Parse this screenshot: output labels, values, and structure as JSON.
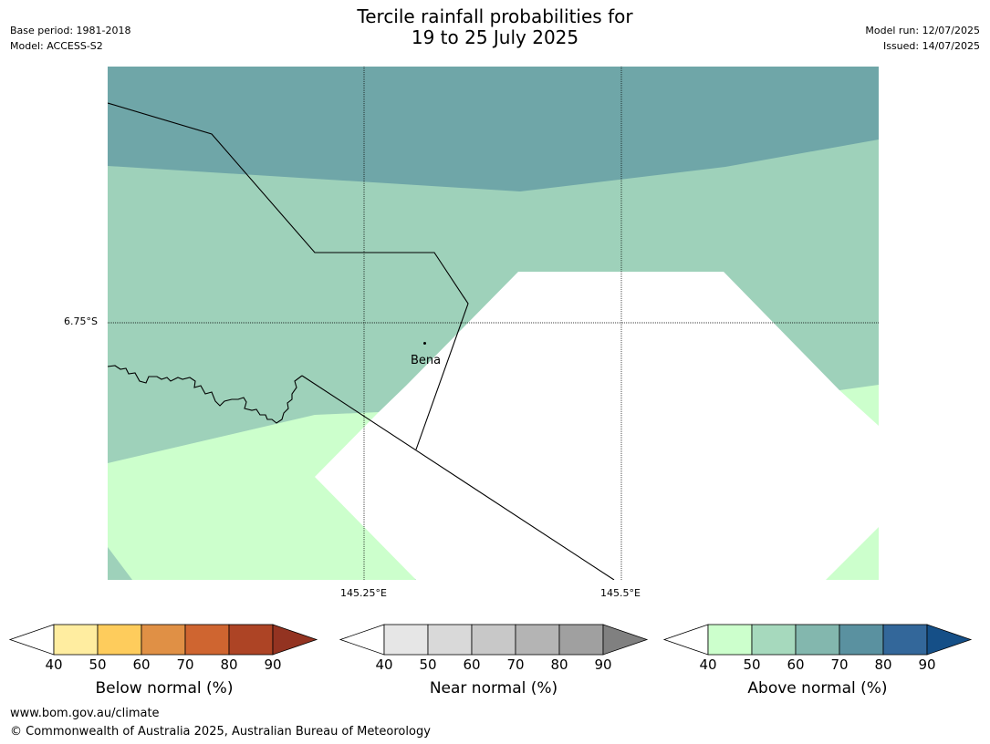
{
  "header": {
    "base_period": "Base period: 1981-2018",
    "model": "Model: ACCESS-S2",
    "model_run": "Model run: 12/07/2025",
    "issued": "Issued: 14/07/2025"
  },
  "title": {
    "line1": "Tercile rainfall probabilities for",
    "line2": "19 to 25 July 2025"
  },
  "map": {
    "latitude_labels": [
      "6.75°S"
    ],
    "longitude_labels": [
      "145.25°E",
      "145.5°E"
    ],
    "places": [
      {
        "name": "Bena"
      }
    ],
    "colors": {
      "above_40_50": "#ccffcc",
      "above_50_60": "#9ed1ba",
      "above_60_70": "#6fa6a8",
      "near_normal": "#ffffff"
    }
  },
  "legends": [
    {
      "title": "Below normal (%)",
      "ticks": [
        "40",
        "50",
        "60",
        "70",
        "80",
        "90"
      ],
      "colors": [
        "#ffffff",
        "#ffeda0",
        "#fecc5c",
        "#e09045",
        "#cf6530",
        "#ad4425",
        "#933321"
      ]
    },
    {
      "title": "Near normal (%)",
      "ticks": [
        "40",
        "50",
        "60",
        "70",
        "80",
        "90"
      ],
      "colors": [
        "#ffffff",
        "#e6e6e6",
        "#d9d9d9",
        "#c8c8c8",
        "#b4b4b4",
        "#a0a0a0",
        "#808080"
      ]
    },
    {
      "title": "Above normal (%)",
      "ticks": [
        "40",
        "50",
        "60",
        "70",
        "80",
        "90"
      ],
      "colors": [
        "#ffffff",
        "#ccffcc",
        "#a6d9bd",
        "#83b7ae",
        "#5a91a0",
        "#33679a",
        "#154f87"
      ]
    }
  ],
  "footer": {
    "url": "www.bom.gov.au/climate",
    "copyright": "© Commonwealth of Australia 2025, Australian Bureau of Meteorology"
  }
}
